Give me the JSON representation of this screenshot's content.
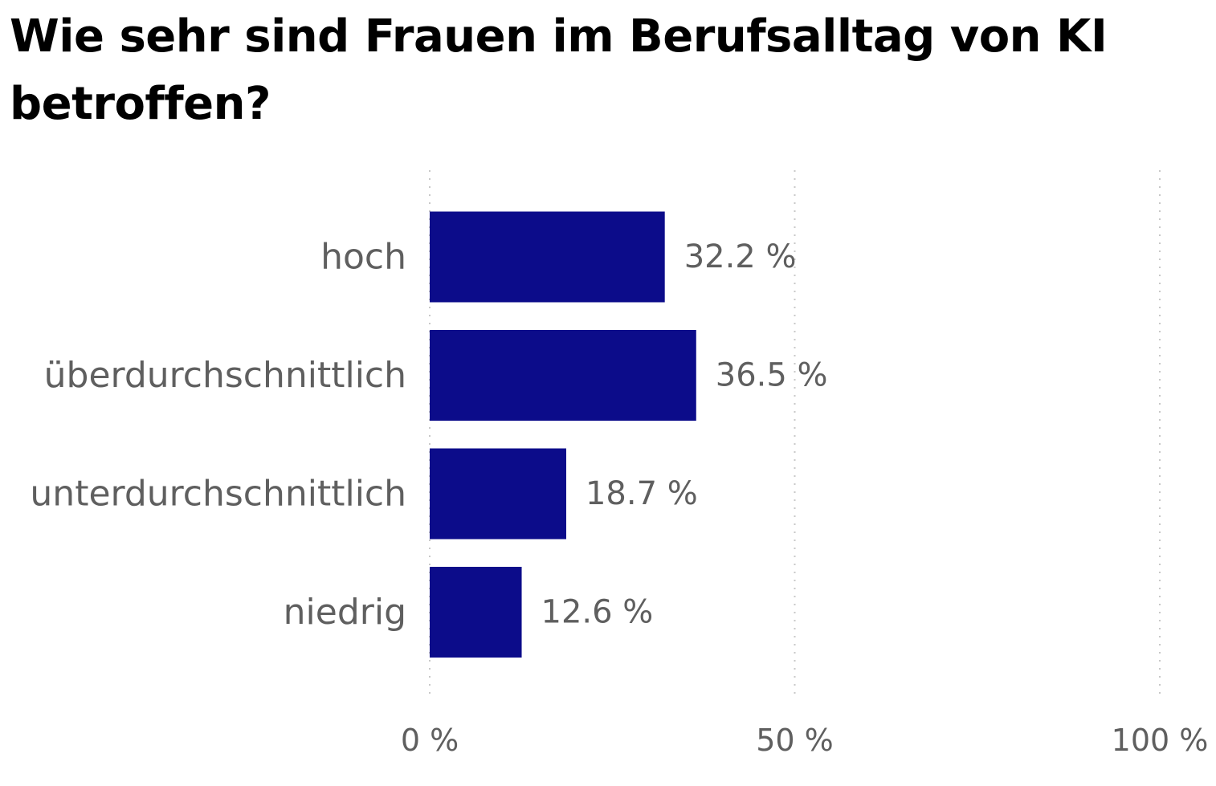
{
  "chart_data": {
    "type": "bar",
    "orientation": "horizontal",
    "title": "Wie sehr sind Frauen im Berufsalltag von KI betroffen?",
    "categories": [
      "hoch",
      "überdurchschnittlich",
      "unterdurchschnittlich",
      "niedrig"
    ],
    "values": [
      32.2,
      36.5,
      18.7,
      12.6
    ],
    "value_labels": [
      "32.2 %",
      "36.5 %",
      "18.7 %",
      "12.6 %"
    ],
    "xlim": [
      0,
      100
    ],
    "x_ticks": [
      0,
      50,
      100
    ],
    "x_tick_labels": [
      "0 %",
      "50 %",
      "100 %"
    ],
    "grid": "vertical dotted",
    "legend": "none",
    "bar_color": "#0c0c8a",
    "text_color": "#5f5f5f",
    "grid_color": "#c8c8c8"
  }
}
